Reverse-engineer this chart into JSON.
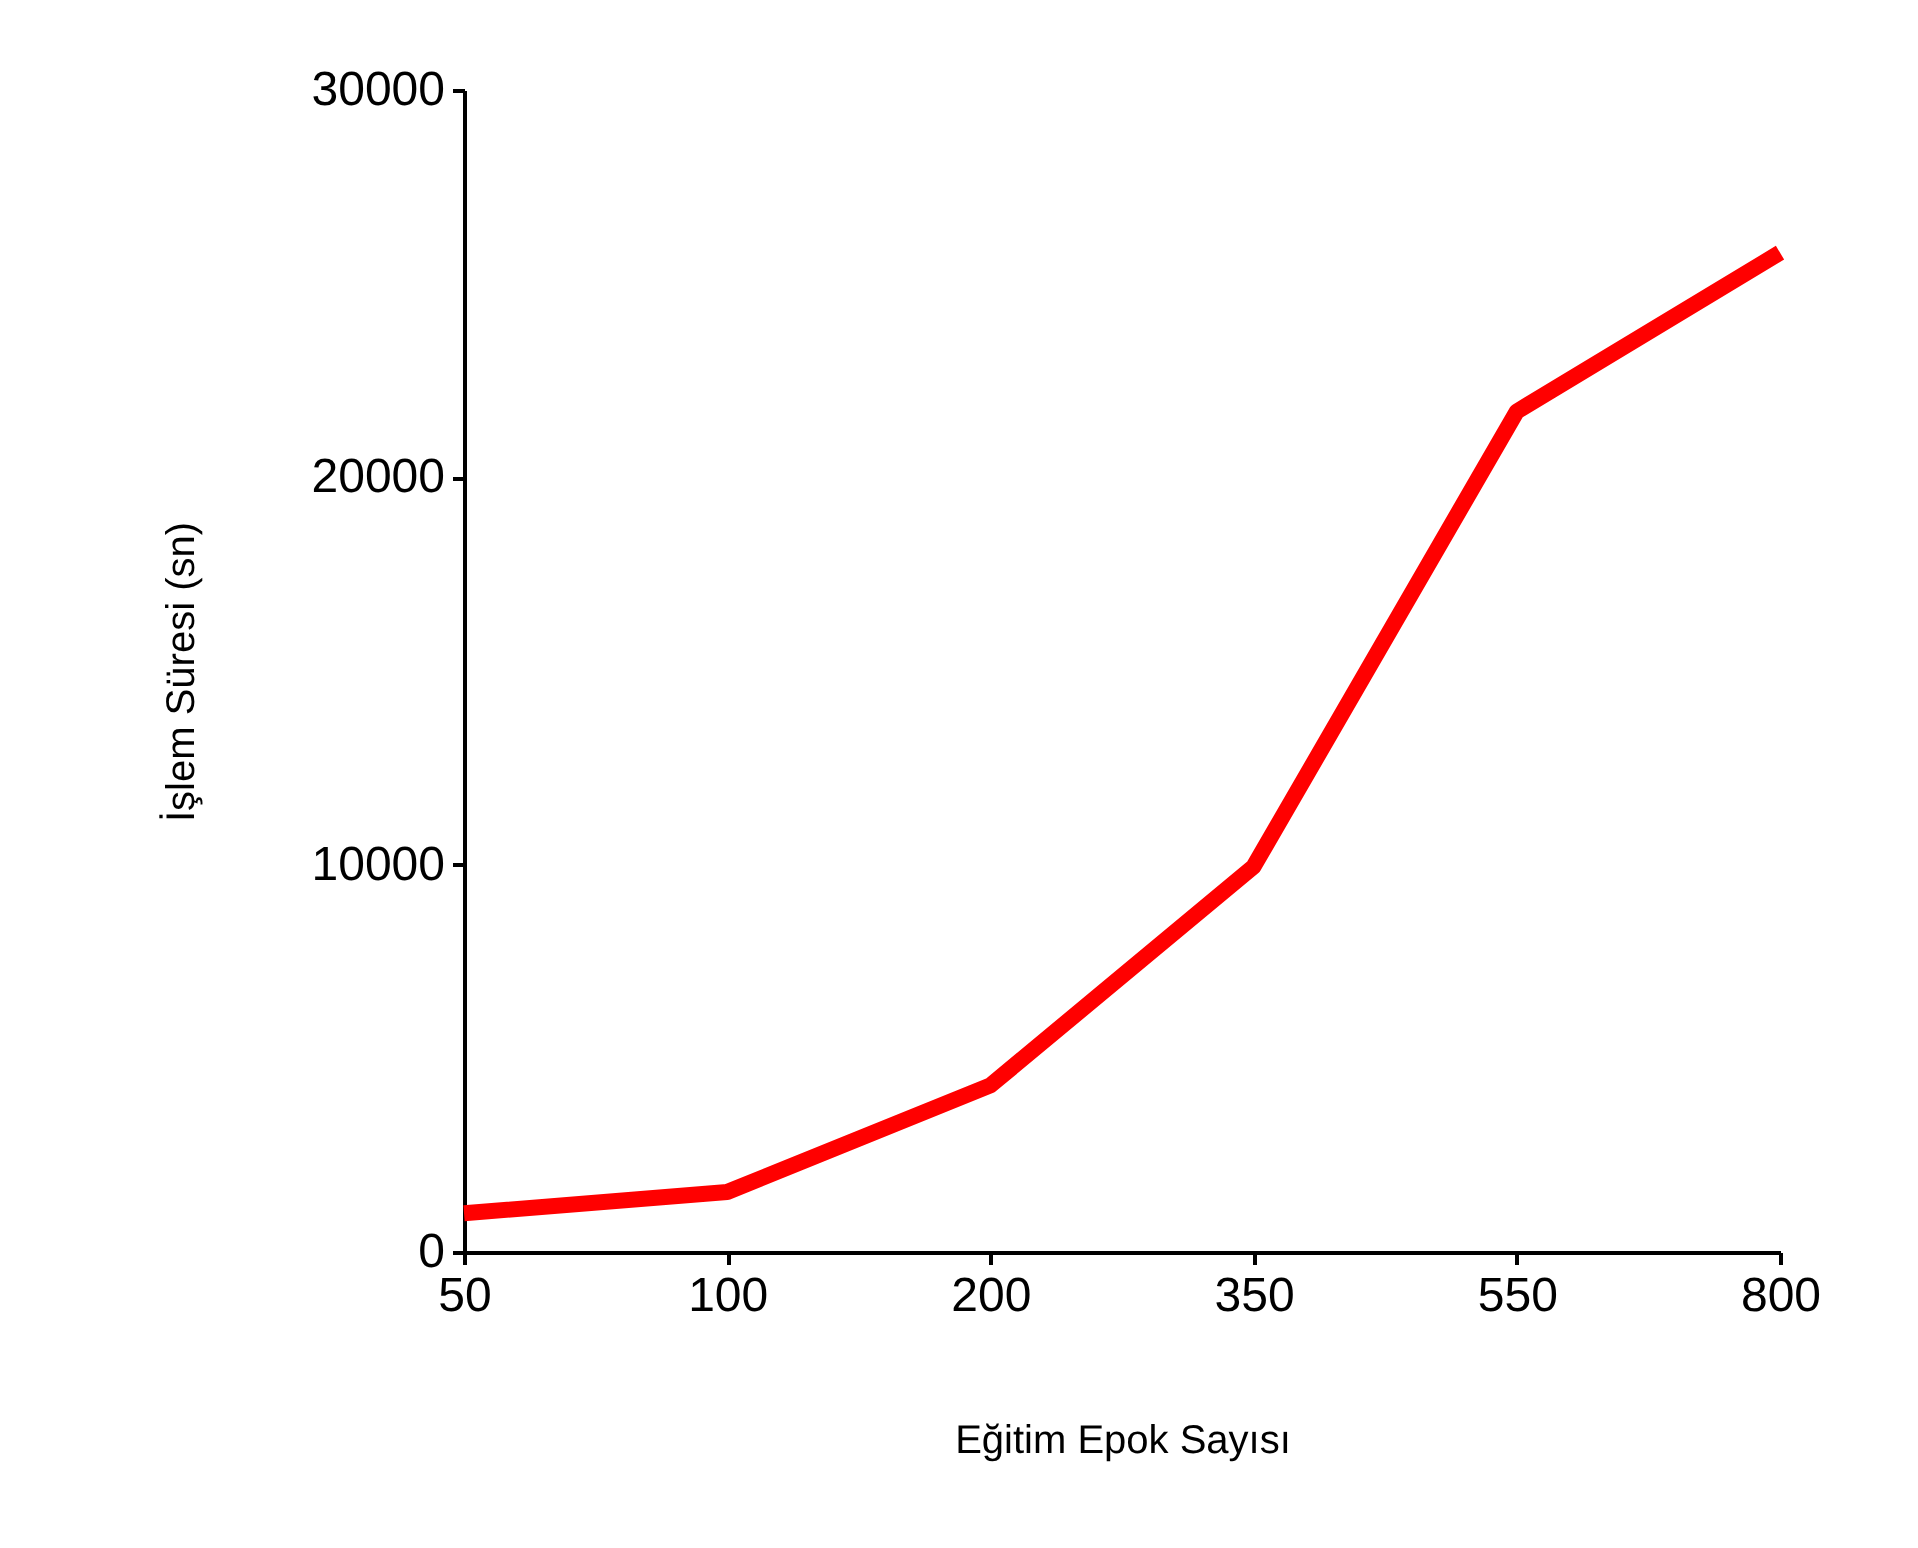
{
  "chart_data": {
    "type": "line",
    "xlabel": "Eğitim Epok Sayısı",
    "ylabel": "İşlem Süresi (sn)",
    "categories": [
      "50",
      "100",
      "200",
      "350",
      "550",
      "800"
    ],
    "series": [
      {
        "color": "#ff0000",
        "values": [
          1000,
          1550,
          4300,
          9950,
          21700,
          25800
        ]
      }
    ],
    "ylim": [
      0,
      30000
    ],
    "yticks": [
      0,
      10000,
      20000,
      30000
    ],
    "grid": false,
    "marker": "none",
    "line_style": "solid"
  }
}
